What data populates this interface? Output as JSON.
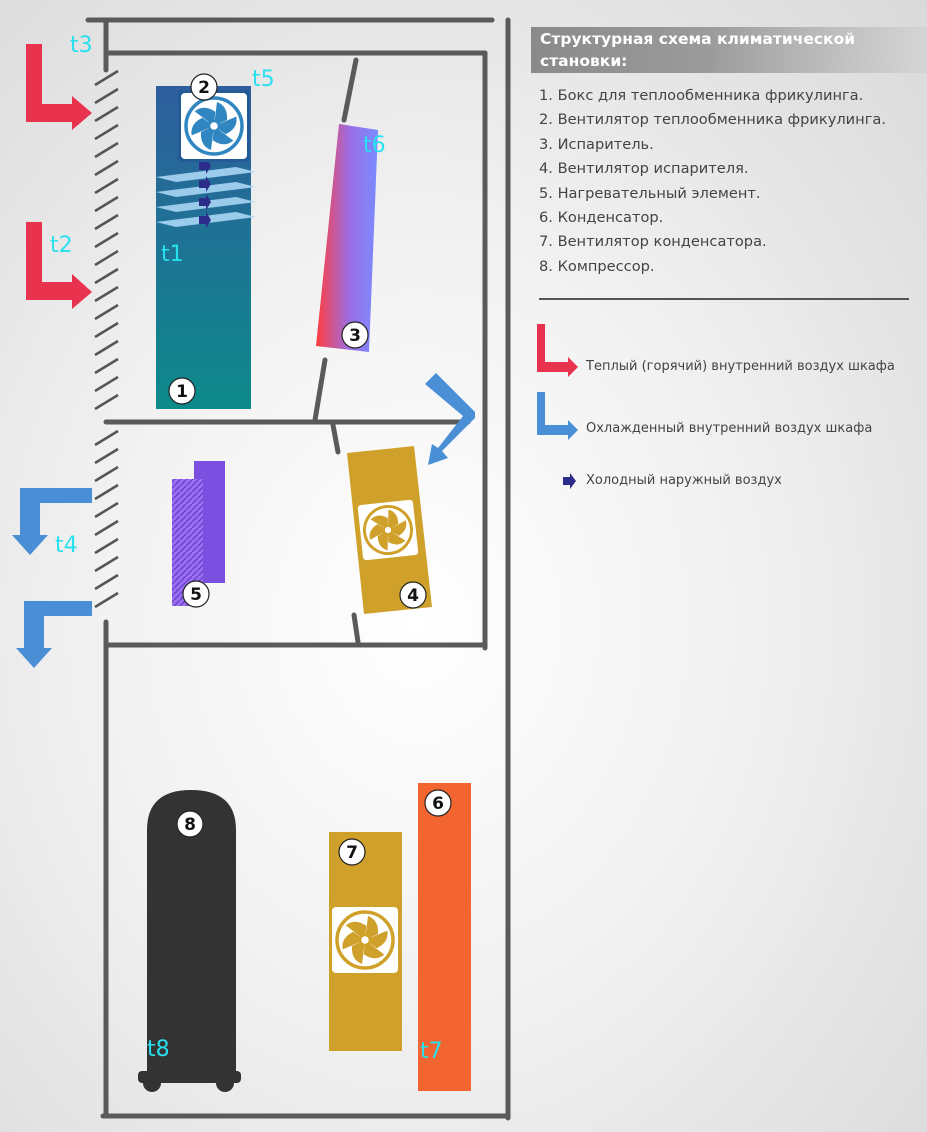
{
  "legend": {
    "title": "Структурная схема климатической\nстановки:",
    "items": [
      "1. Бокс для теплообменника фрикулинга.",
      "2. Вентилятор теплообменника фрикулинга.",
      "3. Испаритель.",
      "4. Вентилятор испарителя.",
      "5. Нагревательный элемент.",
      "6. Конденсатор.",
      "7. Вентилятор конденсатора.",
      "8. Компрессор."
    ],
    "keys": {
      "warm": "Теплый (горячий) внутренний воздух шкафа",
      "cooled": "Охлажденный внутренний воздух шкафа",
      "outside": "Холодный наружный воздух"
    }
  },
  "sensors": {
    "t1": "t1",
    "t2": "t2",
    "t3": "t3",
    "t4": "t4",
    "t5": "t5",
    "t6": "t6",
    "t7": "t7",
    "t8": "t8"
  },
  "components": {
    "n1": "1",
    "n2": "2",
    "n3": "3",
    "n4": "4",
    "n5": "5",
    "n6": "6",
    "n7": "7",
    "n8": "8"
  },
  "colors": {
    "frame": "#5a5a5a",
    "warm_air": "#e8324e",
    "cooled_air": "#4a8fd6",
    "outside_air": "#2c2c8a",
    "box_top": "#2e5e9e",
    "box_bottom": "#0d8a8a",
    "fan_gold": "#cfa12a",
    "condenser": "#f26530",
    "compressor": "#333333",
    "heater": "#7b4fe0",
    "sensor_label": "#28e0ee"
  }
}
